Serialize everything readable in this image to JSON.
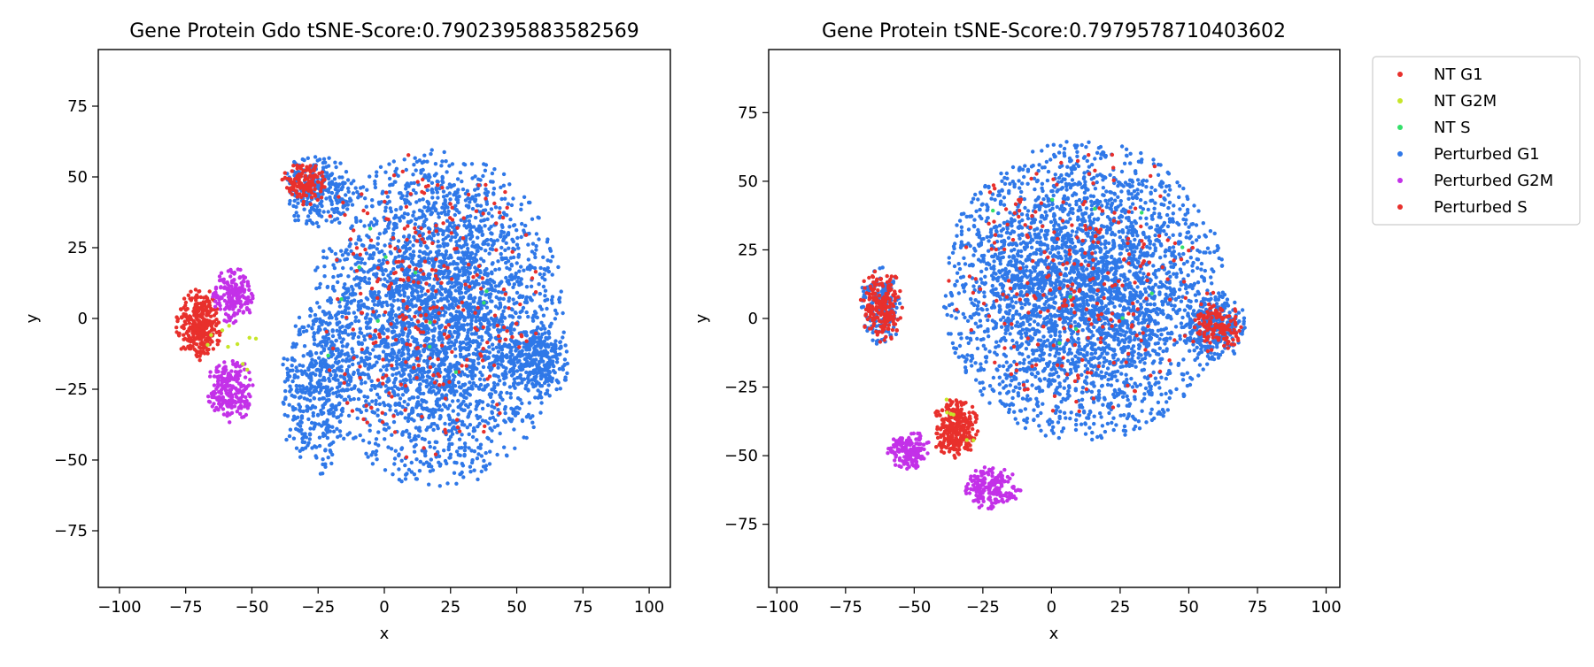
{
  "chart_data": [
    {
      "type": "scatter",
      "title": "Gene Protein Gdo tSNE-Score:0.7902395883582569",
      "xlabel": "x",
      "ylabel": "y",
      "xlim": [
        -108,
        108
      ],
      "ylim": [
        -95,
        95
      ],
      "xticks": [
        -100,
        -75,
        -50,
        -25,
        0,
        25,
        50,
        75,
        100
      ],
      "yticks": [
        -75,
        -50,
        -25,
        0,
        25,
        50,
        75
      ],
      "grid": false,
      "clusters": [
        {
          "series": "Perturbed G1",
          "cx": 20,
          "cy": 0,
          "rx": 48,
          "ry": 60,
          "n": 3200
        },
        {
          "series": "Perturbed G1",
          "cx": -25,
          "cy": 45,
          "rx": 15,
          "ry": 13,
          "n": 260
        },
        {
          "series": "Perturbed G1",
          "cx": -25,
          "cy": -25,
          "rx": 15,
          "ry": 30,
          "n": 420
        },
        {
          "series": "Perturbed G1",
          "cx": 58,
          "cy": -15,
          "rx": 12,
          "ry": 15,
          "n": 280
        },
        {
          "series": "Perturbed S",
          "cx": -30,
          "cy": 48,
          "rx": 9,
          "ry": 8,
          "n": 130
        },
        {
          "series": "Perturbed S",
          "cx": -70,
          "cy": -2,
          "rx": 9,
          "ry": 13,
          "n": 300
        },
        {
          "series": "Perturbed S",
          "cx": 15,
          "cy": 5,
          "rx": 45,
          "ry": 55,
          "n": 260
        },
        {
          "series": "Perturbed G2M",
          "cx": -57,
          "cy": 8,
          "rx": 8,
          "ry": 10,
          "n": 180
        },
        {
          "series": "Perturbed G2M",
          "cx": -58,
          "cy": -25,
          "rx": 9,
          "ry": 12,
          "n": 220
        },
        {
          "series": "NT G1",
          "cx": 15,
          "cy": 5,
          "rx": 45,
          "ry": 50,
          "n": 20
        },
        {
          "series": "NT G2M",
          "cx": -55,
          "cy": -10,
          "rx": 15,
          "ry": 20,
          "n": 10
        },
        {
          "series": "NT S",
          "cx": 10,
          "cy": 10,
          "rx": 45,
          "ry": 45,
          "n": 12
        }
      ]
    },
    {
      "type": "scatter",
      "title": "Gene Protein tSNE-Score:0.7979578710403602",
      "xlabel": "x",
      "ylabel": "y",
      "xlim": [
        -103,
        105
      ],
      "ylim": [
        -98,
        98
      ],
      "xticks": [
        -100,
        -75,
        -50,
        -25,
        0,
        25,
        50,
        75,
        100
      ],
      "yticks": [
        -75,
        -50,
        -25,
        0,
        25,
        50,
        75
      ],
      "grid": false,
      "clusters": [
        {
          "series": "Perturbed G1",
          "cx": 12,
          "cy": 10,
          "rx": 52,
          "ry": 55,
          "n": 3300
        },
        {
          "series": "Perturbed G1",
          "cx": -62,
          "cy": 5,
          "rx": 8,
          "ry": 15,
          "n": 160
        },
        {
          "series": "Perturbed G1",
          "cx": 60,
          "cy": -3,
          "rx": 12,
          "ry": 12,
          "n": 250
        },
        {
          "series": "Perturbed S",
          "cx": -62,
          "cy": 5,
          "rx": 8,
          "ry": 14,
          "n": 200
        },
        {
          "series": "Perturbed S",
          "cx": -35,
          "cy": -40,
          "rx": 9,
          "ry": 11,
          "n": 280
        },
        {
          "series": "Perturbed S",
          "cx": 60,
          "cy": -3,
          "rx": 10,
          "ry": 10,
          "n": 130
        },
        {
          "series": "Perturbed S",
          "cx": 10,
          "cy": 15,
          "rx": 50,
          "ry": 50,
          "n": 240
        },
        {
          "series": "Perturbed G2M",
          "cx": -52,
          "cy": -48,
          "rx": 8,
          "ry": 7,
          "n": 150
        },
        {
          "series": "Perturbed G2M",
          "cx": -22,
          "cy": -62,
          "rx": 11,
          "ry": 8,
          "n": 200
        },
        {
          "series": "NT G1",
          "cx": 10,
          "cy": 10,
          "rx": 45,
          "ry": 45,
          "n": 15
        },
        {
          "series": "NT G2M",
          "cx": -30,
          "cy": -40,
          "rx": 15,
          "ry": 15,
          "n": 6
        },
        {
          "series": "NT S",
          "cx": 10,
          "cy": 10,
          "rx": 45,
          "ry": 45,
          "n": 10
        }
      ]
    }
  ],
  "legend": {
    "placement": "outside-right",
    "entries": [
      {
        "name": "NT G1",
        "color": "#e8302c"
      },
      {
        "name": "NT G2M",
        "color": "#c7e62a"
      },
      {
        "name": "NT S",
        "color": "#34e06a"
      },
      {
        "name": "Perturbed G1",
        "color": "#2f78e8"
      },
      {
        "name": "Perturbed G2M",
        "color": "#c331e8"
      },
      {
        "name": "Perturbed S",
        "color": "#e8302c"
      }
    ]
  }
}
